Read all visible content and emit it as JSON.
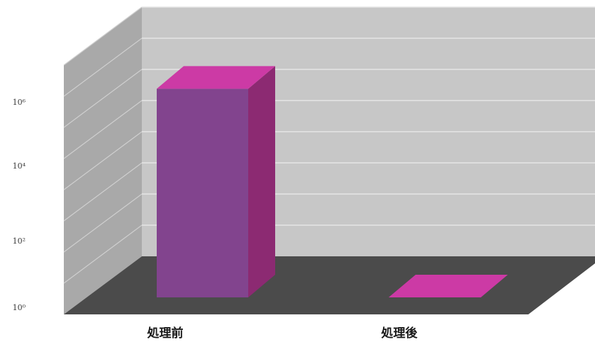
{
  "chart_data": {
    "type": "bar",
    "style": "3d-column",
    "y_scale": "log",
    "yticks": [
      {
        "label": "10⁰",
        "value": 0
      },
      {
        "label": "10²",
        "value": 2
      },
      {
        "label": "10⁴",
        "value": 4
      },
      {
        "label": "10⁶",
        "value": 6
      }
    ],
    "ylim": [
      0,
      8
    ],
    "categories": [
      "処理前",
      "処理後"
    ],
    "values": [
      7.2,
      0
    ],
    "grid": true,
    "legend": "none"
  },
  "colors": {
    "bar_front": "#82448e",
    "bar_top": "#cc3aa5",
    "bar_side": "#8c2a72",
    "back_wall": "#c7c7c7",
    "left_wall": "#a9a9a9",
    "floor": "#4b4b4b",
    "grid_line": "#e6e6e6"
  }
}
